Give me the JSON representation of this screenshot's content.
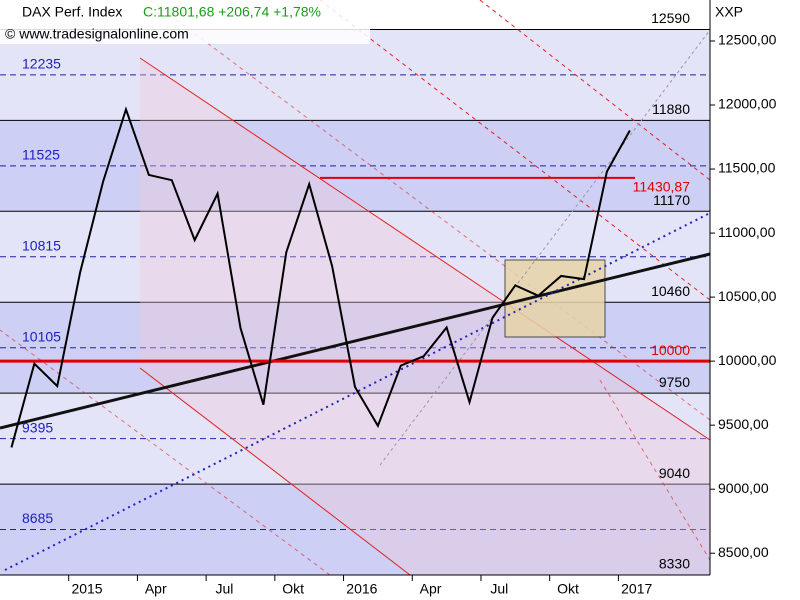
{
  "chart_data": {
    "type": "line",
    "title": "DAX Perf. Index",
    "subtitle": "C:11801,68 +206,74 +1,78%",
    "source": "© www.tradesignalonline.com",
    "axis_label": "XXP",
    "categories": [
      null,
      null,
      null,
      "2015",
      null,
      null,
      "Apr",
      null,
      null,
      "Jul",
      null,
      null,
      "Okt",
      null,
      null,
      "2016",
      null,
      null,
      "Apr",
      null,
      null,
      "Jul",
      null,
      null,
      "Okt",
      null,
      null,
      "2017",
      null,
      null,
      null
    ],
    "series": [
      {
        "name": "DAX Perf. Index",
        "color": "#000000",
        "values": [
          9326,
          9980,
          9805,
          10694,
          11401,
          11966,
          11454,
          11413,
          10945,
          11308,
          10259,
          9660,
          10850,
          11382,
          10743,
          9798,
          9495,
          9965,
          10039,
          10263,
          9680,
          10337,
          10592,
          10511,
          10665,
          10640,
          11481,
          11801,
          null,
          null,
          null
        ]
      }
    ],
    "ylim": [
      8330,
      12820
    ],
    "yticks": [
      {
        "value": 8500,
        "label": "8500,00"
      },
      {
        "value": 9000,
        "label": "9000,00"
      },
      {
        "value": 9500,
        "label": "9500,00"
      },
      {
        "value": 10000,
        "label": "10000,00"
      },
      {
        "value": 10500,
        "label": "10500,00"
      },
      {
        "value": 11000,
        "label": "11000,00"
      },
      {
        "value": 11500,
        "label": "11500,00"
      },
      {
        "value": 12000,
        "label": "12000,00"
      },
      {
        "value": 12500,
        "label": "12500,00"
      }
    ],
    "levels": [
      12590,
      12235,
      11880,
      11525,
      11170,
      10815,
      10460,
      10105,
      9750,
      9395,
      9040,
      8685,
      8330
    ],
    "support": [
      10000,
      {
        "value": 11430.87,
        "label": "11430,87"
      }
    ]
  }
}
